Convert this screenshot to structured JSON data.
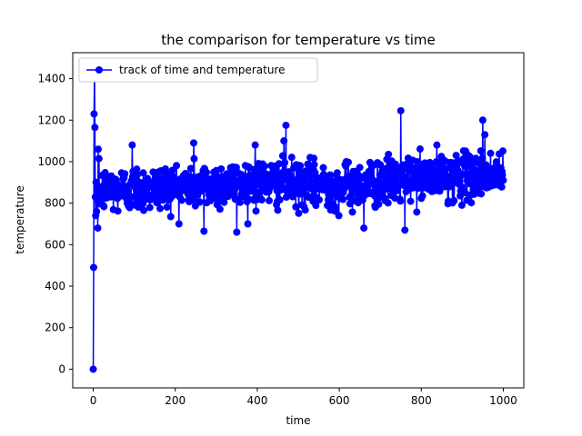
{
  "chart_data": {
    "type": "line",
    "title": "the comparison for temperature vs time",
    "xlabel": "time",
    "ylabel": "temperature",
    "xlim": [
      -50,
      1050
    ],
    "ylim": [
      -90,
      1525
    ],
    "xticks": [
      0,
      200,
      400,
      600,
      800,
      1000
    ],
    "yticks": [
      0,
      200,
      400,
      600,
      800,
      1000,
      1200,
      1400
    ],
    "grid": false,
    "legend_position": "upper-left",
    "series": [
      {
        "name": "track of time and temperature",
        "color": "#0000ff",
        "marker": "circle",
        "initial_points": [
          [
            0,
            0
          ],
          [
            1,
            490
          ],
          [
            2,
            1230
          ],
          [
            3,
            1440
          ],
          [
            4,
            1165
          ],
          [
            5,
            830
          ],
          [
            6,
            740
          ],
          [
            7,
            900
          ],
          [
            8,
            760
          ],
          [
            9,
            820
          ],
          [
            10,
            870
          ],
          [
            11,
            680
          ],
          [
            12,
            1060
          ],
          [
            13,
            800
          ]
        ],
        "noise_profile": {
          "x_start": 14,
          "x_end": 1000,
          "trend": [
            [
              14,
              860
            ],
            [
              200,
              880
            ],
            [
              400,
              900
            ],
            [
              600,
              880
            ],
            [
              800,
              920
            ],
            [
              1000,
              940
            ]
          ],
          "spread": 90
        },
        "notable_points": [
          [
            350,
            660
          ],
          [
            470,
            1175
          ],
          [
            465,
            1100
          ],
          [
            750,
            1245
          ],
          [
            760,
            670
          ],
          [
            660,
            680
          ],
          [
            270,
            665
          ],
          [
            950,
            1200
          ],
          [
            955,
            1130
          ],
          [
            95,
            1080
          ],
          [
            245,
            1090
          ],
          [
            395,
            1080
          ]
        ]
      }
    ]
  }
}
